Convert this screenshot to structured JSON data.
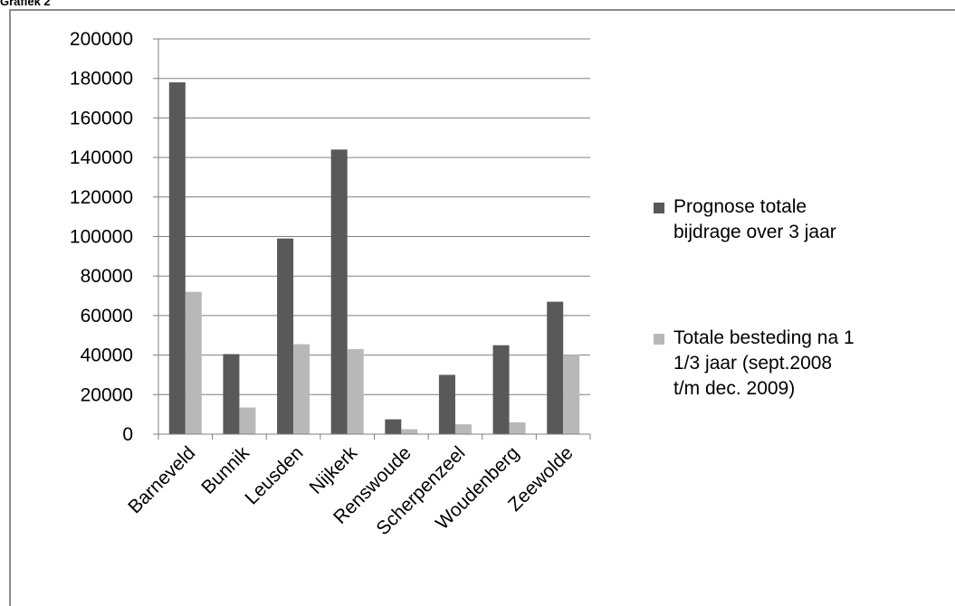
{
  "header": {
    "label": "Grafiek 2"
  },
  "colors": {
    "series1": "#595959",
    "series2": "#b8b8b8",
    "grid": "#7f7f7f",
    "axis": "#7f7f7f"
  },
  "chart_data": {
    "type": "bar",
    "title": "",
    "xlabel": "",
    "ylabel": "",
    "categories": [
      "Barneveld",
      "Bunnik",
      "Leusden",
      "Nijkerk",
      "Renswoude",
      "Scherpenzeel",
      "Woudenberg",
      "Zeewolde"
    ],
    "series": [
      {
        "name": "Prognose totale bijdrage over 3 jaar",
        "values": [
          178000,
          40500,
          99000,
          144000,
          7500,
          30000,
          45000,
          67000
        ]
      },
      {
        "name": "Totale besteding na 1 1/3 jaar (sept.2008 t/m dec. 2009)",
        "values": [
          72000,
          13500,
          45500,
          43000,
          2500,
          5000,
          6000,
          40000
        ]
      }
    ],
    "ylim": [
      0,
      200000
    ],
    "yticks": [
      "0",
      "20000",
      "40000",
      "60000",
      "80000",
      "100000",
      "120000",
      "140000",
      "160000",
      "180000",
      "200000"
    ],
    "grid": true,
    "legend_position": "right"
  }
}
